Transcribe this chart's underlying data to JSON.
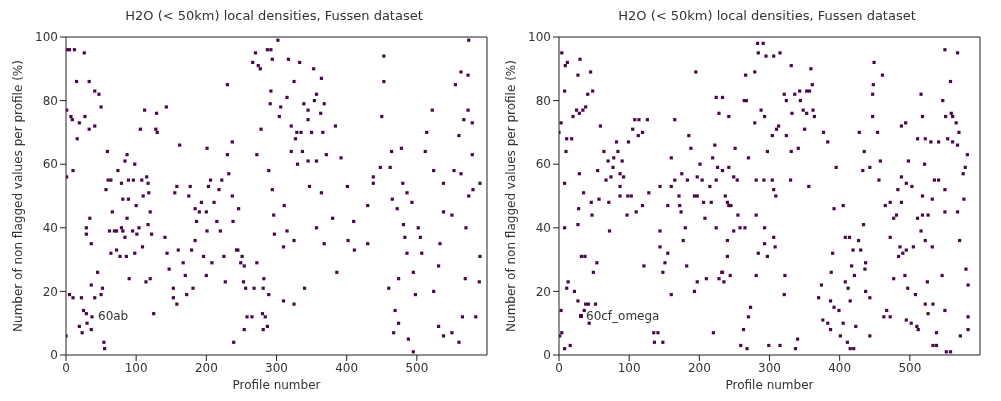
{
  "chart_data": [
    {
      "type": "scatter",
      "title": "H2O (< 50km) local densities, Fussen dataset",
      "xlabel": "Profile number",
      "ylabel": "Number of non flagged values per profile (%)",
      "xlim": [
        0,
        600
      ],
      "xticks": [
        0,
        100,
        200,
        300,
        400,
        500
      ],
      "ylim": [
        0,
        100
      ],
      "yticks": [
        0,
        20,
        40,
        60,
        80,
        100
      ],
      "marker": "square",
      "annotations": [
        "60ab"
      ],
      "series": [
        {
          "color": "#4a0a4a",
          "x": [
            1,
            5,
            12,
            26,
            1,
            7,
            9,
            19,
            16,
            33,
            27,
            41,
            47,
            50,
            41,
            33,
            15,
            1,
            10,
            0,
            5,
            10,
            22,
            25,
            23,
            19,
            29,
            30,
            37,
            36,
            36,
            34,
            29,
            29,
            36,
            45,
            41,
            50,
            52,
            54,
            55,
            57,
            60,
            59,
            64,
            66,
            62,
            69,
            72,
            64,
            72,
            77,
            74,
            81,
            79,
            81,
            84,
            79,
            84,
            87,
            89,
            89,
            87,
            86,
            90,
            96,
            98,
            100,
            95,
            101,
            104,
            98,
            108,
            110,
            106,
            109,
            112,
            115,
            117,
            118,
            120,
            117,
            122,
            114,
            120,
            125,
            129,
            128,
            130,
            143,
            141,
            144,
            147,
            153,
            153,
            158,
            155,
            158,
            162,
            160,
            167,
            170,
            172,
            175,
            177,
            179,
            181,
            184,
            184,
            186,
            190,
            193,
            196,
            200,
            201,
            200,
            201,
            203,
            206,
            208,
            211,
            215,
            218,
            220,
            222,
            225,
            227,
            230,
            232,
            230,
            237,
            237,
            238,
            239,
            243,
            245,
            246,
            249,
            251,
            253,
            254,
            254,
            256,
            258,
            265,
            268,
            272,
            266,
            270,
            274,
            272,
            278,
            281,
            284,
            287,
            289,
            287,
            292,
            302,
            294,
            277,
            317,
            333,
            353,
            325,
            364,
            292,
            291,
            306,
            315,
            304,
            321,
            339,
            345,
            354,
            357,
            368,
            363,
            345,
            329,
            335,
            350,
            366,
            327,
            321,
            337,
            330,
            345,
            357,
            371,
            384,
            392,
            294,
            296,
            297,
            311,
            315,
            310,
            325,
            282,
            289,
            310,
            325,
            280,
            281,
            340,
            347,
            364,
            357,
            368,
            380,
            386,
            401,
            410,
            402,
            411,
            430,
            430,
            438,
            438,
            448,
            462,
            464,
            453,
            450,
            453,
            478,
            480,
            465,
            472,
            486,
            493,
            481,
            483,
            502,
            505,
            486,
            507,
            495,
            498,
            474,
            469,
            474,
            488,
            495,
            467,
            460,
            524,
            538,
            553,
            538,
            550,
            531,
            533,
            524,
            531,
            538,
            550,
            560,
            565,
            584,
            569,
            589,
            570,
            563,
            574,
            580,
            590,
            560,
            579,
            567,
            573,
            579,
            573,
            563,
            555,
            574,
            590,
            522,
            512,
            514
          ],
          "values": [
            96,
            96,
            96,
            95,
            77,
            75,
            74,
            73,
            68,
            71,
            75,
            83,
            82,
            78,
            72,
            86,
            86,
            56,
            58,
            6,
            19,
            18,
            18,
            14,
            7,
            9,
            13,
            10,
            12,
            8,
            22,
            43,
            40,
            38,
            35,
            26,
            18,
            19,
            21,
            4,
            2,
            52,
            55,
            64,
            55,
            45,
            39,
            39,
            39,
            32,
            33,
            31,
            58,
            49,
            40,
            39,
            37,
            54,
            61,
            63,
            55,
            49,
            43,
            31,
            24,
            55,
            60,
            47,
            39,
            38,
            40,
            32,
            55,
            50,
            71,
            34,
            77,
            56,
            54,
            51,
            45,
            41,
            38,
            23,
            24,
            13,
            76,
            71,
            70,
            78,
            37,
            32,
            27,
            21,
            18,
            16,
            51,
            53,
            66,
            33,
            29,
            25,
            19,
            50,
            53,
            33,
            21,
            36,
            46,
            42,
            45,
            48,
            31,
            25,
            39,
            45,
            65,
            53,
            55,
            29,
            48,
            42,
            52,
            39,
            55,
            31,
            23,
            63,
            57,
            85,
            50,
            67,
            42,
            4,
            33,
            33,
            46,
            29,
            31,
            23,
            8,
            28,
            21,
            12,
            12,
            21,
            29,
            92,
            95,
            91,
            63,
            71,
            21,
            12,
            9,
            58,
            96,
            96,
            99,
            93,
            90,
            93,
            92,
            90,
            86,
            87,
            83,
            79,
            78,
            81,
            75,
            72,
            79,
            77,
            80,
            82,
            79,
            76,
            74,
            70,
            70,
            70,
            70,
            68,
            64,
            64,
            60,
            61,
            61,
            63,
            72,
            62,
            52,
            44,
            38,
            47,
            39,
            34,
            36,
            24,
            19,
            17,
            16,
            13,
            8,
            21,
            53,
            51,
            40,
            35,
            43,
            26,
            53,
            42,
            36,
            33,
            47,
            35,
            56,
            54,
            59,
            59,
            64,
            86,
            75,
            94,
            65,
            54,
            49,
            46,
            51,
            48,
            41,
            37,
            40,
            37,
            32,
            32,
            26,
            19,
            24,
            14,
            10,
            5,
            1,
            7,
            21,
            58,
            54,
            58,
            45,
            44,
            28,
            35,
            20,
            9,
            6,
            7,
            4,
            12,
            12,
            24,
            23,
            40,
            57,
            50,
            52,
            54,
            69,
            63,
            74,
            77,
            73,
            88,
            89,
            85,
            99,
            31,
            77,
            64,
            70
          ]
        }
      ]
    },
    {
      "type": "scatter",
      "title": "H2O (< 50km) local densities, Fussen dataset",
      "xlabel": "Profile number",
      "ylabel": "Number of non flagged values per profile (%)",
      "xlim": [
        0,
        600
      ],
      "xticks": [
        0,
        100,
        200,
        300,
        400,
        500
      ],
      "ylim": [
        0,
        100
      ],
      "yticks": [
        0,
        20,
        40,
        60,
        80,
        100
      ],
      "marker": "square",
      "legend": "bottom left",
      "series": [
        {
          "name": "60cf_omega",
          "color": "#4a0a4a",
          "x": [
            4,
            9,
            12,
            30,
            45,
            27,
            8,
            41,
            48,
            20,
            25,
            29,
            34,
            38,
            3,
            0,
            11,
            18,
            10,
            8,
            29,
            35,
            46,
            47,
            28,
            27,
            8,
            32,
            37,
            13,
            11,
            22,
            27,
            36,
            38,
            42,
            52,
            54,
            49,
            43,
            4,
            8,
            16,
            3,
            1,
            57,
            55,
            59,
            64,
            70,
            67,
            71,
            74,
            72,
            77,
            78,
            82,
            84,
            87,
            87,
            87,
            90,
            92,
            98,
            97,
            103,
            99,
            105,
            108,
            110,
            113,
            119,
            114,
            119,
            121,
            126,
            128,
            135,
            136,
            141,
            148,
            144,
            144,
            144,
            148,
            151,
            160,
            155,
            155,
            160,
            165,
            160,
            165,
            171,
            172,
            175,
            174,
            180,
            177,
            182,
            183,
            188,
            193,
            185,
            195,
            197,
            197,
            201,
            204,
            206,
            208,
            197,
            193,
            210,
            215,
            219,
            224,
            222,
            226,
            217,
            220,
            233,
            237,
            242,
            228,
            232,
            224,
            240,
            242,
            233,
            224,
            228,
            242,
            283,
            291,
            284,
            295,
            306,
            315,
            331,
            359,
            266,
            279,
            267,
            264,
            288,
            293,
            279,
            270,
            297,
            304,
            310,
            313,
            321,
            324,
            332,
            336,
            343,
            344,
            353,
            357,
            361,
            348,
            353,
            362,
            364,
            350,
            341,
            331,
            324,
            377,
            383,
            395,
            249,
            254,
            251,
            240,
            245,
            255,
            249,
            258,
            265,
            281,
            293,
            293,
            284,
            297,
            306,
            308,
            281,
            240,
            233,
            244,
            235,
            322,
            321,
            273,
            270,
            263,
            259,
            268,
            299,
            315,
            337,
            340,
            356,
            304,
            306,
            309,
            281,
            292,
            330,
            374,
            370,
            376,
            383,
            387,
            387,
            392,
            399,
            405,
            401,
            411,
            415,
            420,
            423,
            415,
            412,
            408,
            417,
            421,
            427,
            434,
            414,
            408,
            419,
            430,
            437,
            436,
            437,
            443,
            443,
            388,
            392,
            405,
            390,
            428,
            433,
            435,
            443,
            458,
            449,
            448,
            447,
            447,
            454,
            456,
            461,
            465,
            472,
            463,
            467,
            472,
            477,
            477,
            481,
            472,
            484,
            486,
            490,
            495,
            488,
            495,
            503,
            488,
            498,
            483,
            493,
            497,
            502,
            510,
            512,
            495,
            522,
            526,
            533,
            525,
            508,
            505,
            516,
            522,
            532,
            526,
            518,
            511,
            518,
            532,
            535,
            541,
            550,
            541,
            530,
            522,
            511,
            518,
            521,
            494,
            488,
            516,
            547,
            551,
            559,
            561,
            554,
            561,
            568,
            566,
            570,
            550,
            568,
            558,
            550,
            568,
            577,
            579,
            576,
            582,
            571,
            580,
            583,
            583,
            583,
            546,
            550,
            538,
            552,
            558,
            572,
            538,
            533
          ],
          "values": [
            95,
            91,
            92,
            93,
            89,
            88,
            83,
            82,
            83,
            75,
            77,
            76,
            77,
            78,
            73,
            70,
            68,
            68,
            64,
            54,
            57,
            51,
            48,
            44,
            46,
            41,
            40,
            31,
            31,
            23,
            21,
            20,
            17,
            14,
            16,
            16,
            16,
            29,
            26,
            10,
            7,
            2,
            3,
            14,
            6,
            49,
            58,
            72,
            64,
            61,
            55,
            48,
            56,
            39,
            59,
            62,
            67,
            64,
            53,
            50,
            57,
            61,
            56,
            50,
            44,
            50,
            67,
            71,
            74,
            45,
            69,
            70,
            74,
            47,
            28,
            74,
            51,
            7,
            4,
            7,
            4,
            53,
            39,
            34,
            26,
            29,
            19,
            32,
            47,
            53,
            55,
            62,
            74,
            50,
            47,
            57,
            45,
            40,
            36,
            28,
            55,
            65,
            50,
            69,
            89,
            56,
            50,
            60,
            55,
            48,
            43,
            23,
            20,
            24,
            53,
            62,
            55,
            66,
            59,
            48,
            7,
            58,
            50,
            47,
            24,
            26,
            40,
            36,
            75,
            81,
            81,
            76,
            59,
            98,
            98,
            95,
            94,
            94,
            95,
            91,
            90,
            88,
            89,
            80,
            80,
            77,
            75,
            73,
            62,
            64,
            69,
            71,
            72,
            82,
            80,
            76,
            82,
            83,
            80,
            83,
            83,
            85,
            77,
            76,
            77,
            75,
            71,
            65,
            64,
            69,
            70,
            67,
            59,
            56,
            55,
            65,
            48,
            47,
            44,
            39,
            40,
            40,
            44,
            40,
            35,
            32,
            31,
            37,
            34,
            25,
            31,
            26,
            25,
            23,
            25,
            19,
            15,
            12,
            8,
            3,
            2,
            3,
            3,
            2,
            5,
            53,
            55,
            52,
            50,
            55,
            55,
            55,
            22,
            18,
            11,
            10,
            8,
            17,
            15,
            14,
            10,
            6,
            4,
            2,
            2,
            9,
            17,
            21,
            23,
            28,
            25,
            36,
            41,
            37,
            37,
            33,
            33,
            29,
            27,
            20,
            18,
            6,
            26,
            46,
            47,
            32,
            70,
            58,
            64,
            59,
            61,
            92,
            85,
            82,
            75,
            70,
            55,
            88,
            47,
            48,
            12,
            14,
            12,
            24,
            43,
            44,
            37,
            31,
            34,
            32,
            33,
            48,
            54,
            53,
            56,
            61,
            52,
            25,
            21,
            10,
            9,
            8,
            11,
            16,
            13,
            16,
            23,
            19,
            34,
            39,
            36,
            34,
            44,
            44,
            43,
            50,
            49,
            55,
            55,
            52,
            67,
            67,
            68,
            68,
            75,
            60,
            73,
            72,
            82,
            80,
            75,
            76,
            75,
            68,
            67,
            66,
            73,
            70,
            96,
            95,
            86,
            45,
            45,
            49,
            59,
            57,
            63,
            36,
            27,
            22,
            12,
            8,
            25,
            14,
            7,
            1,
            1,
            6,
            3,
            3
          ]
        }
      ]
    }
  ]
}
